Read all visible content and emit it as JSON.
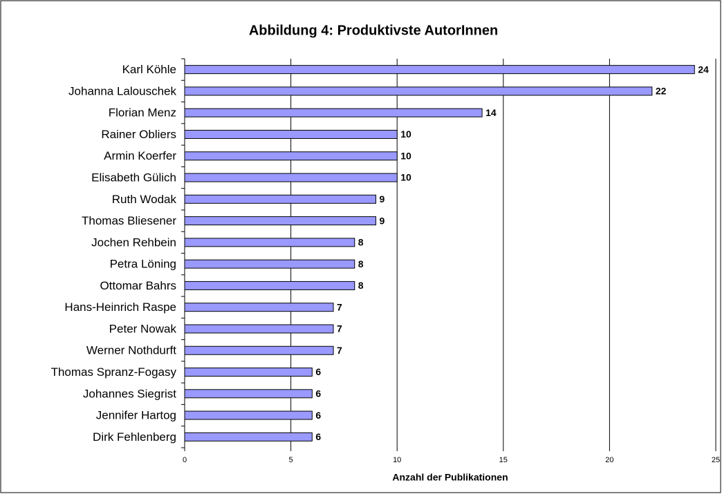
{
  "chart_data": {
    "type": "barh",
    "title": "Abbildung 4: Produktivste AutorInnen",
    "categories": [
      "Karl Köhle",
      "Johanna Lalouschek",
      "Florian Menz",
      "Rainer Obliers",
      "Armin Koerfer",
      "Elisabeth Gülich",
      "Ruth Wodak",
      "Thomas Bliesener",
      "Jochen Rehbein",
      "Petra Löning",
      "Ottomar Bahrs",
      "Hans-Heinrich Raspe",
      "Peter Nowak",
      "Werner Nothdurft",
      "Thomas Spranz-Fogasy",
      "Johannes Siegrist",
      "Jennifer Hartog",
      "Dirk Fehlenberg"
    ],
    "values": [
      24,
      22,
      14,
      10,
      10,
      10,
      9,
      9,
      8,
      8,
      8,
      7,
      7,
      7,
      6,
      6,
      6,
      6
    ],
    "color": "#9999ff",
    "xlabel": "Anzahl der Publikationen",
    "xlim": [
      0,
      25
    ],
    "xticks": [
      0,
      5,
      10,
      15,
      20,
      25
    ],
    "grid": true
  }
}
